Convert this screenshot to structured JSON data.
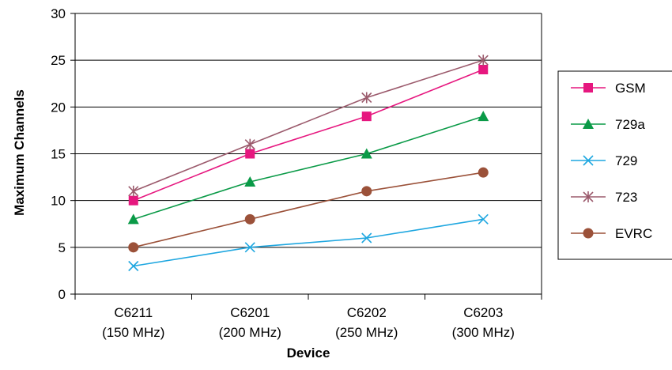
{
  "chart_data": {
    "type": "line",
    "title": "",
    "xlabel": "Device",
    "ylabel": "Maximum Channels",
    "categories": [
      [
        "C6211",
        "(150 MHz)"
      ],
      [
        "C6201",
        "(200 MHz)"
      ],
      [
        "C6202",
        "(250 MHz)"
      ],
      [
        "C6203",
        "(300 MHz)"
      ]
    ],
    "ylim": [
      0,
      30
    ],
    "yticks": [
      0,
      5,
      10,
      15,
      20,
      25,
      30
    ],
    "grid": true,
    "legend_position": "right",
    "series": [
      {
        "name": "GSM",
        "values": [
          10,
          15,
          19,
          24
        ],
        "color": "#e6177f",
        "marker": "square"
      },
      {
        "name": "729a",
        "values": [
          8,
          12,
          15,
          19
        ],
        "color": "#0a9a47",
        "marker": "triangle"
      },
      {
        "name": "729",
        "values": [
          3,
          5,
          6,
          8
        ],
        "color": "#1fa7e0",
        "marker": "x"
      },
      {
        "name": "723",
        "values": [
          11,
          16,
          21,
          25
        ],
        "color": "#9b5a6c",
        "marker": "star"
      },
      {
        "name": "EVRC",
        "values": [
          5,
          8,
          11,
          13
        ],
        "color": "#9b5139",
        "marker": "circle"
      }
    ]
  }
}
